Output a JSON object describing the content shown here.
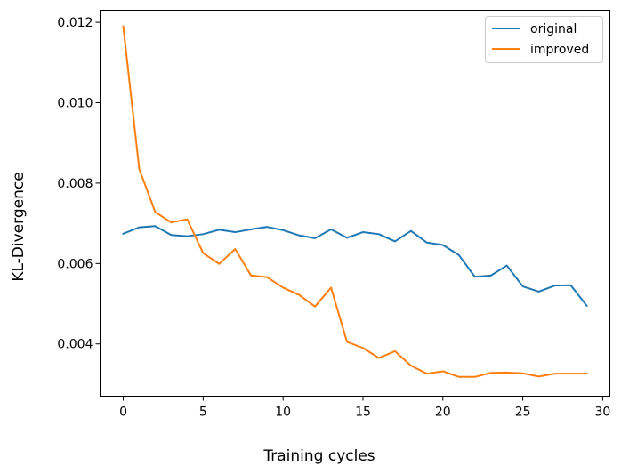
{
  "chart_data": {
    "type": "line",
    "title": "",
    "xlabel": "Training cycles",
    "ylabel": "KL-Divergence",
    "xlim": [
      -1.45,
      30.45
    ],
    "ylim": [
      0.0027,
      0.0123
    ],
    "xticks": [
      0,
      5,
      10,
      15,
      20,
      25,
      30
    ],
    "xtick_labels": [
      "0",
      "5",
      "10",
      "15",
      "20",
      "25",
      "30"
    ],
    "yticks": [
      0.004,
      0.006,
      0.008,
      0.01,
      0.012
    ],
    "ytick_labels": [
      "0.004",
      "0.006",
      "0.008",
      "0.010",
      "0.012"
    ],
    "grid": false,
    "legend_position": "top-right",
    "x": [
      0,
      1,
      2,
      3,
      4,
      5,
      6,
      7,
      8,
      9,
      10,
      11,
      12,
      13,
      14,
      15,
      16,
      17,
      18,
      19,
      20,
      21,
      22,
      23,
      24,
      25,
      26,
      27,
      28,
      29
    ],
    "series": [
      {
        "name": "original",
        "color": "#1f77b4",
        "values": [
          0.00674,
          0.0069,
          0.00693,
          0.00671,
          0.00668,
          0.00673,
          0.00684,
          0.00678,
          0.00685,
          0.00691,
          0.00683,
          0.0067,
          0.00663,
          0.00685,
          0.00664,
          0.00678,
          0.00673,
          0.00655,
          0.00681,
          0.00652,
          0.00646,
          0.00621,
          0.00567,
          0.0057,
          0.00595,
          0.00543,
          0.0053,
          0.00545,
          0.00546,
          0.00495
        ]
      },
      {
        "name": "improved",
        "color": "#ff7f0e",
        "values": [
          0.0119,
          0.00835,
          0.00728,
          0.00702,
          0.0071,
          0.00626,
          0.00599,
          0.00636,
          0.0057,
          0.00566,
          0.0054,
          0.00522,
          0.00493,
          0.0054,
          0.00405,
          0.0039,
          0.00365,
          0.00382,
          0.00346,
          0.00326,
          0.00332,
          0.00318,
          0.00318,
          0.00328,
          0.00329,
          0.00327,
          0.00319,
          0.00326,
          0.00326,
          0.00326
        ]
      }
    ]
  }
}
